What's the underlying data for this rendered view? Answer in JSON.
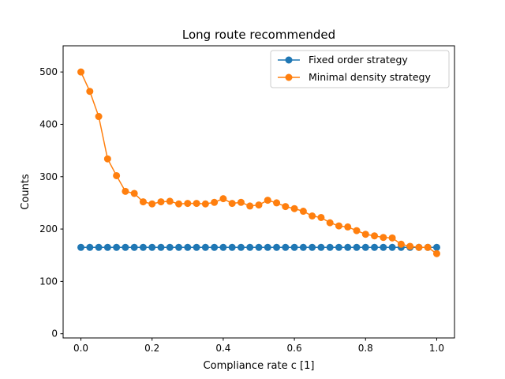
{
  "chart_data": {
    "type": "line",
    "title": "Long route recommended",
    "xlabel": "Compliance rate c [1]",
    "ylabel": "Counts",
    "xlim": [
      -0.05,
      1.05
    ],
    "ylim": [
      -8,
      550
    ],
    "xticks": [
      0.0,
      0.2,
      0.4,
      0.6,
      0.8,
      1.0
    ],
    "xtick_labels": [
      "0.0",
      "0.2",
      "0.4",
      "0.6",
      "0.8",
      "1.0"
    ],
    "yticks": [
      0,
      100,
      200,
      300,
      400,
      500
    ],
    "ytick_labels": [
      "0",
      "100",
      "200",
      "300",
      "400",
      "500"
    ],
    "grid": false,
    "legend_position": "top-right",
    "x": [
      0.0,
      0.025,
      0.05,
      0.075,
      0.1,
      0.125,
      0.15,
      0.175,
      0.2,
      0.225,
      0.25,
      0.275,
      0.3,
      0.325,
      0.35,
      0.375,
      0.4,
      0.425,
      0.45,
      0.475,
      0.5,
      0.525,
      0.55,
      0.575,
      0.6,
      0.625,
      0.65,
      0.675,
      0.7,
      0.725,
      0.75,
      0.775,
      0.8,
      0.825,
      0.85,
      0.875,
      0.9,
      0.925,
      0.95,
      0.975,
      1.0
    ],
    "series": [
      {
        "name": "Fixed order strategy",
        "color": "#1f77b4",
        "values": [
          165,
          165,
          165,
          165,
          165,
          165,
          165,
          165,
          165,
          165,
          165,
          165,
          165,
          165,
          165,
          165,
          165,
          165,
          165,
          165,
          165,
          165,
          165,
          165,
          165,
          165,
          165,
          165,
          165,
          165,
          165,
          165,
          165,
          165,
          165,
          165,
          165,
          165,
          165,
          165,
          165
        ]
      },
      {
        "name": "Minimal density strategy",
        "color": "#ff7f0e",
        "values": [
          500,
          463,
          415,
          334,
          302,
          272,
          268,
          252,
          248,
          252,
          253,
          248,
          249,
          249,
          248,
          251,
          258,
          249,
          251,
          244,
          246,
          255,
          250,
          243,
          239,
          234,
          225,
          222,
          212,
          206,
          204,
          197,
          190,
          187,
          184,
          183,
          171,
          167,
          165,
          165,
          153
        ]
      }
    ]
  }
}
